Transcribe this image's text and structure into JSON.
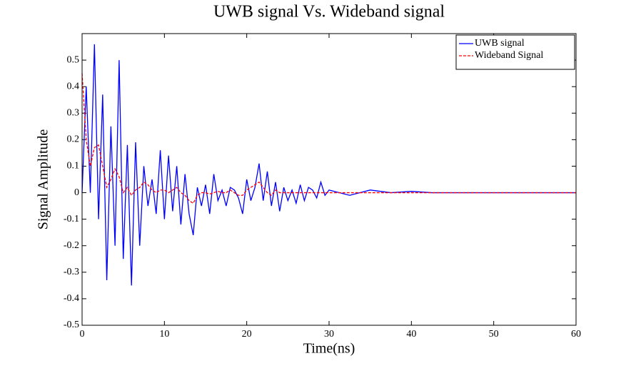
{
  "chart_data": {
    "type": "line",
    "title": "UWB signal Vs. Wideband signal",
    "xlabel": "Time(ns)",
    "ylabel": "Signal Amplitude",
    "x": [
      0,
      0.5,
      1,
      1.5,
      2,
      2.5,
      3,
      3.5,
      4,
      4.5,
      5,
      5.5,
      6,
      6.5,
      7,
      7.5,
      8,
      8.5,
      9,
      9.5,
      10,
      10.5,
      11,
      11.5,
      12,
      12.5,
      13,
      13.5,
      14,
      14.5,
      15,
      15.5,
      16,
      16.5,
      17,
      17.5,
      18,
      18.5,
      19,
      19.5,
      20,
      20.5,
      21,
      21.5,
      22,
      22.5,
      23,
      23.5,
      24,
      24.5,
      25,
      25.5,
      26,
      26.5,
      27,
      27.5,
      28,
      28.5,
      29,
      29.5,
      30,
      32.5,
      35,
      37.5,
      40,
      42.5,
      45,
      47.5,
      50,
      52.5,
      55,
      57.5,
      60
    ],
    "series": [
      {
        "name": "UWB signal",
        "color": "#0000ff",
        "dash": "solid",
        "values": [
          0,
          0.4,
          0,
          0.56,
          -0.1,
          0.37,
          -0.33,
          0.25,
          -0.2,
          0.5,
          -0.25,
          0.18,
          -0.35,
          0.19,
          -0.2,
          0.1,
          -0.05,
          0.05,
          -0.08,
          0.16,
          -0.1,
          0.14,
          -0.07,
          0.1,
          -0.12,
          0.07,
          -0.08,
          -0.16,
          0.02,
          -0.05,
          0.03,
          -0.08,
          0.07,
          -0.03,
          0.01,
          -0.05,
          0.02,
          0.01,
          -0.02,
          -0.08,
          0.05,
          -0.03,
          0.02,
          0.11,
          -0.03,
          0.08,
          -0.05,
          0.04,
          -0.07,
          0.02,
          -0.03,
          0.01,
          -0.04,
          0.03,
          -0.03,
          0.02,
          0.01,
          -0.02,
          0.04,
          -0.01,
          0.01,
          -0.01,
          0.01,
          0,
          0.005,
          0,
          0,
          0,
          0,
          0,
          0,
          0,
          0
        ]
      },
      {
        "name": "Wideband Signal",
        "color": "#ff0000",
        "dash": "dashed",
        "values": [
          0.45,
          0.2,
          0.1,
          0.17,
          0.18,
          0.1,
          0.02,
          0.05,
          0.09,
          0.06,
          0,
          0.02,
          -0.01,
          0.01,
          0.02,
          0.04,
          0.03,
          0.01,
          0,
          0.01,
          0.01,
          0,
          0.01,
          0.02,
          0,
          -0.01,
          -0.03,
          -0.04,
          -0.01,
          0,
          0,
          -0.005,
          0,
          0.005,
          0,
          0,
          0.01,
          0,
          -0.01,
          -0.01,
          0.01,
          0.02,
          0.03,
          0.04,
          0.02,
          0,
          -0.01,
          0.01,
          0,
          0,
          0,
          0,
          0,
          0,
          0,
          0,
          0,
          0,
          0,
          0,
          0,
          0,
          0,
          0,
          0,
          0,
          0,
          0,
          0,
          0,
          0,
          0,
          0
        ]
      }
    ],
    "xlim": [
      0,
      60
    ],
    "xticks": [
      0,
      10,
      20,
      30,
      40,
      50,
      60
    ],
    "ylim": [
      -0.5,
      0.6
    ],
    "yticks": [
      -0.5,
      -0.4,
      -0.3,
      -0.2,
      -0.1,
      0,
      0.1,
      0.2,
      0.3,
      0.4,
      0.5
    ],
    "legend": "upper right",
    "grid": false
  }
}
